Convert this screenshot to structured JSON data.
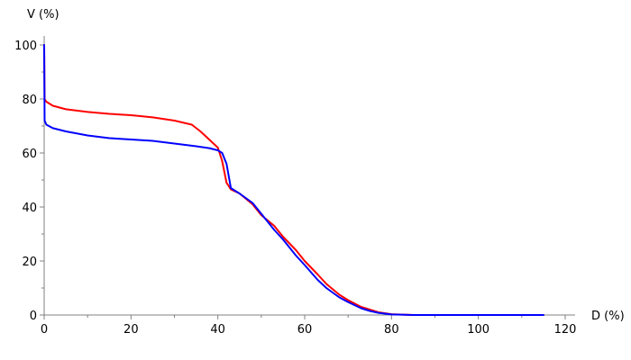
{
  "chart_data": {
    "type": "line",
    "title": "",
    "xlabel": "D (%)",
    "ylabel": "V (%)",
    "xlim": [
      0,
      120
    ],
    "ylim": [
      0,
      100
    ],
    "x_ticks": [
      0,
      20,
      40,
      60,
      80,
      100,
      120
    ],
    "y_ticks": [
      0,
      20,
      40,
      60,
      80,
      100
    ],
    "grid": false,
    "legend": "none",
    "series": [
      {
        "color": "#ff0000",
        "points": [
          [
            0,
            100
          ],
          [
            0.1,
            80
          ],
          [
            0.5,
            79
          ],
          [
            2,
            77.5
          ],
          [
            5,
            76.2
          ],
          [
            10,
            75.2
          ],
          [
            15,
            74.5
          ],
          [
            20,
            74
          ],
          [
            25,
            73.2
          ],
          [
            30,
            72
          ],
          [
            34,
            70.5
          ],
          [
            36,
            68
          ],
          [
            38,
            65
          ],
          [
            40,
            62
          ],
          [
            41,
            57
          ],
          [
            42,
            49
          ],
          [
            43,
            46.5
          ],
          [
            45,
            45
          ],
          [
            48,
            41
          ],
          [
            50,
            37
          ],
          [
            53,
            33
          ],
          [
            55,
            29
          ],
          [
            58,
            24
          ],
          [
            60,
            20
          ],
          [
            63,
            15
          ],
          [
            65,
            11.5
          ],
          [
            68,
            7.5
          ],
          [
            70,
            5.5
          ],
          [
            73,
            3
          ],
          [
            75,
            2
          ],
          [
            77,
            1
          ],
          [
            80,
            0.3
          ],
          [
            85,
            0
          ],
          [
            100,
            0
          ],
          [
            115,
            0
          ]
        ]
      },
      {
        "color": "#0000ff",
        "points": [
          [
            0,
            100
          ],
          [
            0.1,
            72
          ],
          [
            0.5,
            70.5
          ],
          [
            2,
            69.2
          ],
          [
            5,
            68
          ],
          [
            10,
            66.5
          ],
          [
            15,
            65.5
          ],
          [
            20,
            65
          ],
          [
            25,
            64.5
          ],
          [
            30,
            63.5
          ],
          [
            35,
            62.5
          ],
          [
            38,
            61.8
          ],
          [
            40,
            61
          ],
          [
            41,
            60
          ],
          [
            42,
            56
          ],
          [
            43,
            47
          ],
          [
            45,
            45
          ],
          [
            48,
            41.5
          ],
          [
            50,
            37.5
          ],
          [
            53,
            31.5
          ],
          [
            55,
            28
          ],
          [
            58,
            22
          ],
          [
            60,
            18.5
          ],
          [
            63,
            13
          ],
          [
            65,
            10
          ],
          [
            68,
            6.5
          ],
          [
            70,
            4.8
          ],
          [
            73,
            2.5
          ],
          [
            75,
            1.5
          ],
          [
            77,
            0.8
          ],
          [
            80,
            0.2
          ],
          [
            85,
            0
          ],
          [
            100,
            0
          ],
          [
            115,
            0
          ]
        ]
      }
    ]
  }
}
